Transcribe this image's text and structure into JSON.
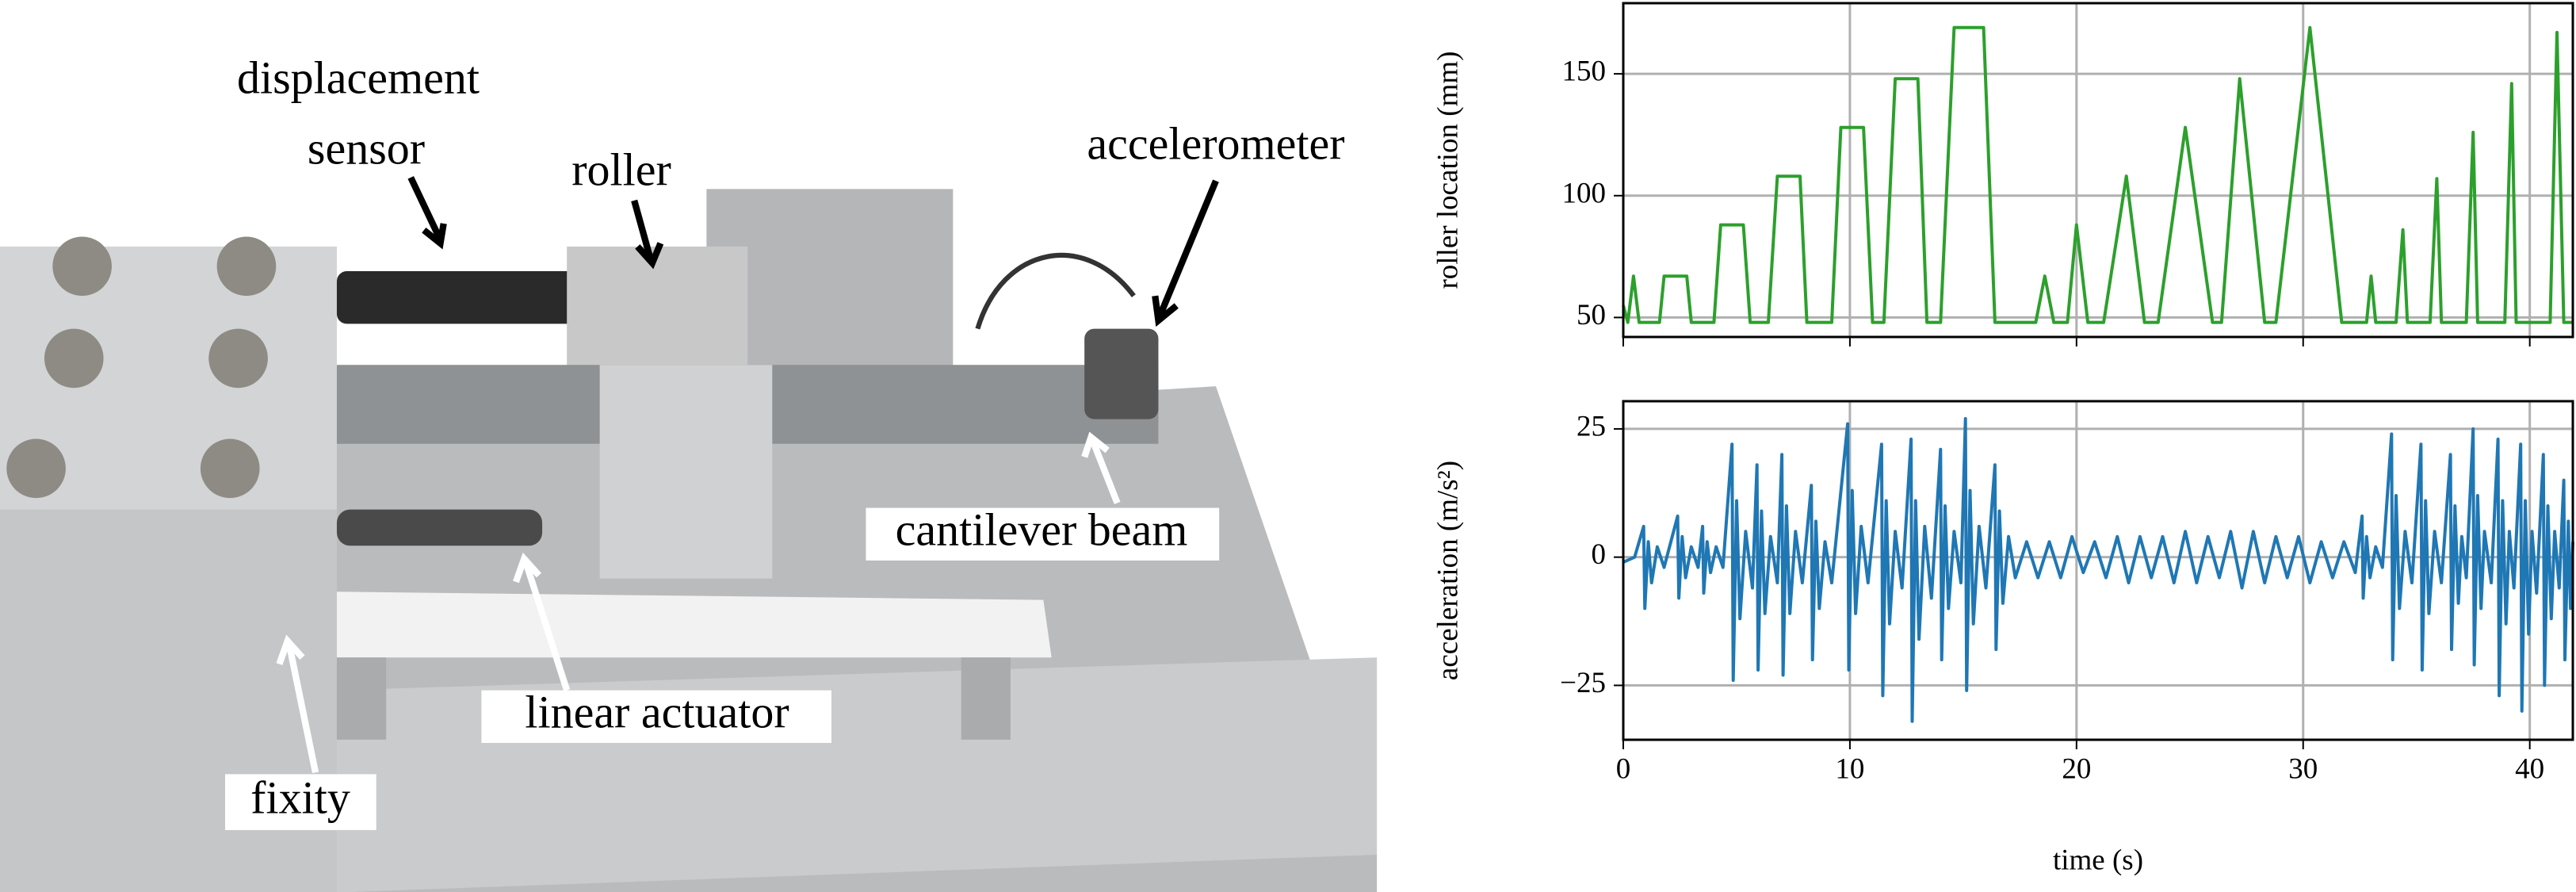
{
  "photo": {
    "labels": [
      "displacement",
      "sensor",
      "roller",
      "accelerometer",
      "cantilever beam",
      "linear actuator",
      "fixity"
    ]
  },
  "chart_data": [
    {
      "type": "line",
      "ylabel": "roller location (mm)",
      "grid": true,
      "xtick_labels": false,
      "xlim": [
        0,
        41.9
      ],
      "xticks": [
        0,
        10,
        20,
        30,
        40
      ],
      "ylim": [
        42,
        179
      ],
      "yticks": [
        50,
        100,
        150
      ],
      "series": [
        {
          "color": "#2ca02c",
          "x": [
            0,
            0.2,
            0.45,
            0.7,
            1.6,
            1.8,
            2.8,
            3.0,
            4.0,
            4.3,
            5.3,
            5.6,
            6.4,
            6.8,
            7.8,
            8.1,
            9.2,
            9.6,
            10.6,
            11.0,
            11.5,
            12.0,
            13.0,
            13.4,
            14.0,
            14.6,
            15.9,
            16.4,
            18.2,
            18.6,
            19.0,
            19.6,
            20.0,
            20.5,
            21.2,
            22.2,
            23.0,
            23.6,
            24.8,
            26.0,
            26.4,
            27.2,
            28.3,
            28.8,
            30.3,
            31.7,
            32.8,
            33.0,
            33.2,
            34.1,
            34.4,
            34.6,
            35.6,
            35.9,
            36.1,
            37.2,
            37.5,
            37.7,
            38.9,
            39.2,
            39.4,
            40.9,
            41.2,
            41.5,
            41.9
          ],
          "values": [
            55,
            48,
            67,
            48,
            48,
            67,
            67,
            48,
            48,
            88,
            88,
            48,
            48,
            108,
            108,
            48,
            48,
            128,
            128,
            48,
            48,
            148,
            148,
            48,
            48,
            169,
            169,
            48,
            48,
            67,
            48,
            48,
            88,
            48,
            48,
            108,
            48,
            48,
            128,
            48,
            48,
            148,
            48,
            48,
            169,
            48,
            48,
            67,
            48,
            48,
            86,
            48,
            48,
            107,
            48,
            48,
            126,
            48,
            48,
            146,
            48,
            48,
            167,
            48,
            48
          ]
        }
      ]
    },
    {
      "type": "line",
      "ylabel": "acceleration (m/s²)",
      "xlabel": "time (s)",
      "grid": true,
      "xtick_labels": true,
      "xlim": [
        0,
        41.9
      ],
      "xticks": [
        0,
        10,
        20,
        30,
        40
      ],
      "ylim": [
        -35.6,
        30.4
      ],
      "yticks": [
        {
          "value": -25,
          "label": "−25"
        },
        0,
        25
      ],
      "series": [
        {
          "color": "#1f77b4",
          "x": [
            0,
            0.5,
            0.9,
            0.95,
            1.1,
            1.25,
            1.5,
            1.8,
            2.4,
            2.45,
            2.6,
            2.75,
            3.0,
            3.3,
            3.5,
            3.55,
            3.7,
            3.85,
            4.1,
            4.4,
            4.8,
            4.85,
            5.0,
            5.15,
            5.4,
            5.7,
            5.9,
            5.95,
            6.1,
            6.25,
            6.5,
            6.8,
            7.0,
            7.05,
            7.2,
            7.35,
            7.6,
            7.9,
            8.3,
            8.35,
            8.5,
            8.65,
            8.9,
            9.2,
            9.9,
            9.95,
            10.1,
            10.25,
            10.5,
            10.8,
            11.4,
            11.45,
            11.6,
            11.75,
            12.0,
            12.3,
            12.7,
            12.75,
            12.9,
            13.05,
            13.3,
            13.6,
            14.0,
            14.05,
            14.2,
            14.35,
            14.6,
            14.9,
            15.1,
            15.15,
            15.3,
            15.45,
            15.7,
            16.0,
            16.4,
            16.45,
            16.6,
            16.75,
            17.0,
            17.3,
            17.8,
            18.3,
            18.8,
            19.3,
            19.8,
            20.3,
            20.8,
            21.3,
            21.8,
            22.3,
            22.8,
            23.3,
            23.8,
            24.3,
            24.8,
            25.3,
            25.8,
            26.3,
            26.8,
            27.3,
            27.8,
            28.3,
            28.8,
            29.3,
            29.8,
            30.3,
            30.8,
            31.3,
            31.8,
            32.3,
            32.6,
            32.65,
            32.8,
            32.95,
            33.2,
            33.5,
            33.9,
            33.95,
            34.1,
            34.25,
            34.5,
            34.8,
            35.2,
            35.25,
            35.4,
            35.55,
            35.8,
            36.1,
            36.5,
            36.55,
            36.7,
            36.85,
            37.0,
            37.2,
            37.5,
            37.55,
            37.7,
            37.85,
            38.0,
            38.3,
            38.6,
            38.65,
            38.8,
            38.95,
            39.1,
            39.3,
            39.6,
            39.65,
            39.8,
            39.95,
            40.1,
            40.3,
            40.6,
            40.65,
            40.8,
            40.95,
            41.1,
            41.3,
            41.5,
            41.55,
            41.7,
            41.8,
            41.9
          ],
          "values": [
            -1,
            0,
            6,
            -10,
            3,
            -5,
            2,
            -2,
            8,
            -8,
            4,
            -4,
            2,
            -2,
            6,
            -7,
            3,
            -3,
            2,
            -2,
            22,
            -24,
            11,
            -12,
            5,
            -6,
            18,
            -22,
            9,
            -11,
            4,
            -5,
            20,
            -23,
            10,
            -11,
            5,
            -5,
            14,
            -20,
            7,
            -10,
            3,
            -5,
            26,
            -22,
            13,
            -11,
            6,
            -5,
            22,
            -27,
            11,
            -13,
            5,
            -6,
            23,
            -32,
            11,
            -16,
            6,
            -8,
            21,
            -20,
            10,
            -10,
            5,
            -5,
            27,
            -26,
            13,
            -13,
            6,
            -6,
            18,
            -18,
            9,
            -9,
            4,
            -4,
            3,
            -4,
            3,
            -4,
            4,
            -3,
            3,
            -4,
            4,
            -5,
            4,
            -4,
            4,
            -5,
            5,
            -5,
            4,
            -4,
            5,
            -6,
            5,
            -5,
            4,
            -4,
            4,
            -5,
            3,
            -4,
            3,
            -3,
            8,
            -8,
            4,
            -4,
            2,
            -2,
            24,
            -20,
            12,
            -10,
            5,
            -5,
            22,
            -22,
            11,
            -11,
            5,
            -5,
            20,
            -18,
            10,
            -9,
            4,
            -4,
            25,
            -21,
            12,
            -10,
            5,
            -5,
            23,
            -27,
            11,
            -13,
            5,
            -6,
            22,
            -30,
            11,
            -15,
            5,
            -7,
            20,
            -25,
            10,
            -12,
            5,
            -6,
            15,
            -20,
            7,
            -10,
            3
          ]
        }
      ]
    }
  ]
}
